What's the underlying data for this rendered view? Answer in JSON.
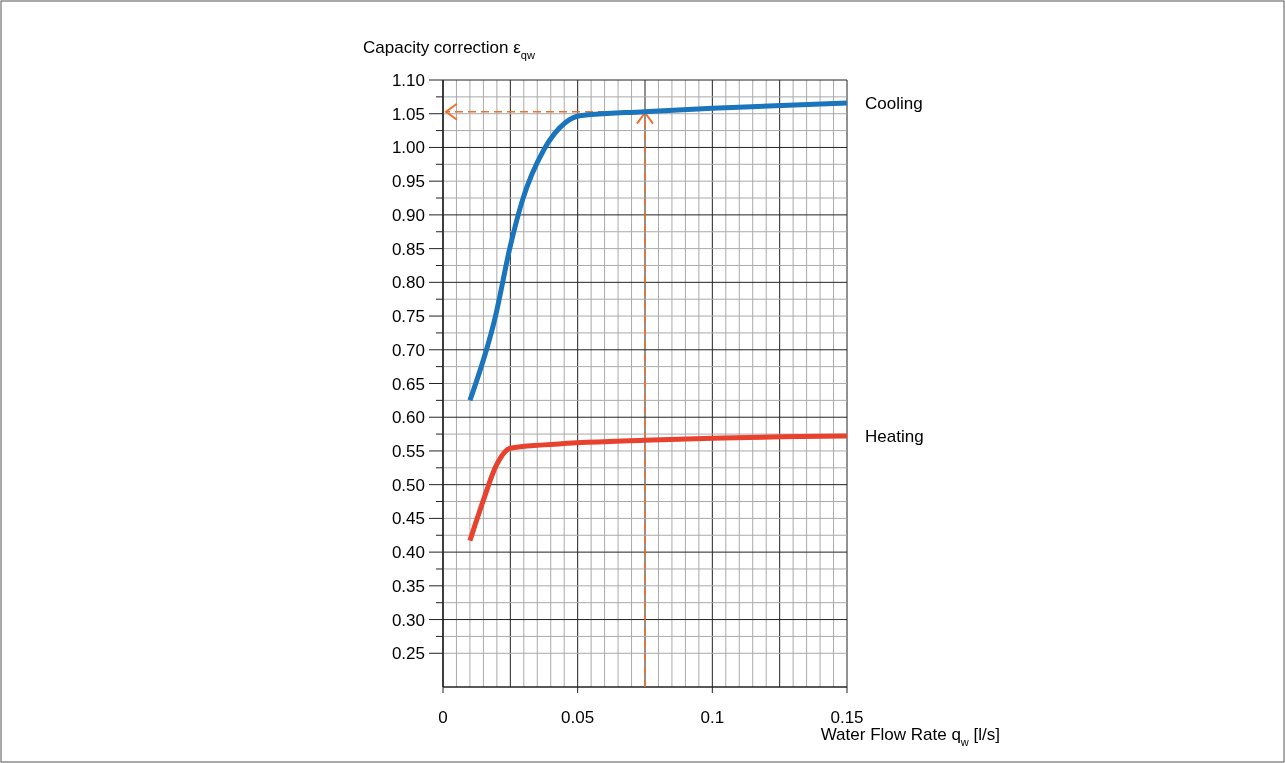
{
  "chart_data": {
    "type": "line",
    "ylabel": "Capacity correction ε$_{qw}$",
    "xlabel": "Water Flow Rate q$_{w}$ [l/s]",
    "xlim": [
      0,
      0.15
    ],
    "ylim": [
      0.2,
      1.1
    ],
    "xticks": [
      0,
      {
        "value": 0.005,
        "label": null
      },
      {
        "value": 0.01,
        "label": null
      },
      {
        "value": 0.015,
        "label": null
      },
      {
        "value": 0.02,
        "label": null
      },
      {
        "value": 0.025,
        "label": null
      },
      {
        "value": 0.03,
        "label": null
      },
      {
        "value": 0.035,
        "label": null
      },
      {
        "value": 0.04,
        "label": null
      },
      {
        "value": 0.045,
        "label": null
      },
      0.05,
      {
        "value": 0.055,
        "label": null
      },
      {
        "value": 0.06,
        "label": null
      },
      {
        "value": 0.065,
        "label": null
      },
      {
        "value": 0.07,
        "label": null
      },
      {
        "value": 0.075,
        "label": null
      },
      {
        "value": 0.08,
        "label": null
      },
      {
        "value": 0.085,
        "label": null
      },
      {
        "value": 0.09,
        "label": null
      },
      {
        "value": 0.095,
        "label": null
      },
      {
        "value": 0.1,
        "label": "0.1"
      },
      {
        "value": 0.105,
        "label": null
      },
      {
        "value": 0.11,
        "label": null
      },
      {
        "value": 0.115,
        "label": null
      },
      {
        "value": 0.12,
        "label": null
      },
      {
        "value": 0.125,
        "label": null
      },
      {
        "value": 0.13,
        "label": null
      },
      {
        "value": 0.135,
        "label": null
      },
      {
        "value": 0.14,
        "label": null
      },
      {
        "value": 0.145,
        "label": null
      },
      0.15
    ],
    "yticks": [
      {
        "value": 0.25,
        "label": "0.25"
      },
      {
        "value": 0.275,
        "label": null
      },
      {
        "value": 0.3,
        "label": "0.30"
      },
      {
        "value": 0.325,
        "label": null
      },
      {
        "value": 0.35,
        "label": "0.35"
      },
      {
        "value": 0.375,
        "label": null
      },
      {
        "value": 0.4,
        "label": "0.40"
      },
      {
        "value": 0.425,
        "label": null
      },
      {
        "value": 0.45,
        "label": "0.45"
      },
      {
        "value": 0.475,
        "label": null
      },
      {
        "value": 0.5,
        "label": "0.50"
      },
      {
        "value": 0.525,
        "label": null
      },
      {
        "value": 0.55,
        "label": "0.55"
      },
      {
        "value": 0.575,
        "label": null
      },
      {
        "value": 0.6,
        "label": "0.60"
      },
      {
        "value": 0.625,
        "label": null
      },
      {
        "value": 0.65,
        "label": "0.65"
      },
      {
        "value": 0.675,
        "label": null
      },
      {
        "value": 0.7,
        "label": "0.70"
      },
      {
        "value": 0.725,
        "label": null
      },
      {
        "value": 0.75,
        "label": "0.75"
      },
      {
        "value": 0.775,
        "label": null
      },
      {
        "value": 0.8,
        "label": "0.80"
      },
      {
        "value": 0.825,
        "label": null
      },
      {
        "value": 0.85,
        "label": "0.85"
      },
      {
        "value": 0.875,
        "label": null
      },
      {
        "value": 0.9,
        "label": "0.90"
      },
      {
        "value": 0.925,
        "label": null
      },
      {
        "value": 0.95,
        "label": "0.95"
      },
      {
        "value": 0.975,
        "label": null
      },
      {
        "value": 1.0,
        "label": "1.00"
      },
      {
        "value": 1.025,
        "label": null
      },
      {
        "value": 1.05,
        "label": "1.05"
      },
      {
        "value": 1.075,
        "label": null
      },
      {
        "value": 1.1,
        "label": "1.10"
      }
    ],
    "grid": true,
    "legend": false,
    "marker": "none",
    "line_style": "solid",
    "series": [
      {
        "name": "Cooling",
        "color": "#1a75bc",
        "x": [
          0.01,
          0.0195,
          0.025,
          0.0296,
          0.0375,
          0.0455,
          0.0508,
          0.0747,
          0.1,
          0.15
        ],
        "values": [
          0.625,
          0.75,
          0.854,
          0.923,
          0.997,
          1.037,
          1.047,
          1.053,
          1.058,
          1.066
        ]
      },
      {
        "name": "Heating",
        "color": "#e8412e",
        "x": [
          0.01,
          0.015,
          0.0196,
          0.025,
          0.0375,
          0.0747,
          0.1,
          0.15
        ],
        "values": [
          0.417,
          0.477,
          0.527,
          0.554,
          0.559,
          0.566,
          0.569,
          0.572
        ]
      }
    ],
    "ref_lines": [
      {
        "axis": "x",
        "value": 0.075,
        "color": "#f07030",
        "line_style": "dashed"
      },
      {
        "axis": "y",
        "value": 1.053,
        "color": "#f07030",
        "line_style": "dashed"
      }
    ]
  }
}
